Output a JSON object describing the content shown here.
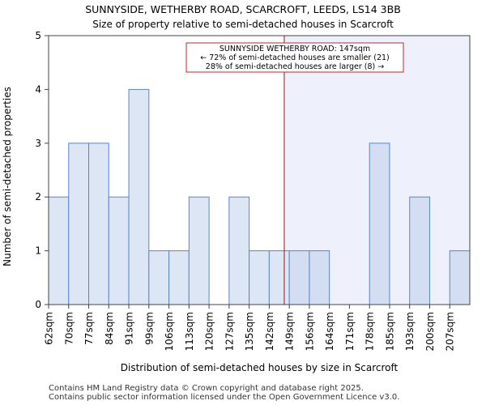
{
  "chart_data": {
    "type": "bar",
    "title": "SUNNYSIDE, WETHERBY ROAD, SCARCROFT, LEEDS, LS14 3BB",
    "subtitle": "Size of property relative to semi-detached houses in Scarcroft",
    "xlabel": "Distribution of semi-detached houses by size in Scarcroft",
    "ylabel": "Number of semi-detached properties",
    "categories": [
      "62sqm",
      "70sqm",
      "77sqm",
      "84sqm",
      "91sqm",
      "99sqm",
      "106sqm",
      "113sqm",
      "120sqm",
      "127sqm",
      "135sqm",
      "142sqm",
      "149sqm",
      "156sqm",
      "164sqm",
      "171sqm",
      "178sqm",
      "185sqm",
      "193sqm",
      "200sqm",
      "207sqm"
    ],
    "values": [
      2,
      3,
      3,
      2,
      4,
      1,
      1,
      2,
      0,
      2,
      1,
      1,
      1,
      1,
      0,
      0,
      3,
      0,
      2,
      0,
      1
    ],
    "ylim": [
      0,
      5
    ],
    "yticks": [
      0,
      1,
      2,
      3,
      4,
      5
    ],
    "grid": false,
    "marker": {
      "value": 147,
      "category_index": 11,
      "offset": 0.75,
      "color": "#8b1a1a",
      "label_lines": [
        "SUNNYSIDE WETHERBY ROAD: 147sqm",
        "← 72% of semi-detached houses are smaller (21)",
        "28% of semi-detached houses are larger (8) →"
      ]
    },
    "colors": {
      "bar_fill": "#dce6f4",
      "bar_fill_highlight": "#d3def2",
      "bar_stroke": "#5a86c8",
      "shade": "#eef1fb",
      "annotation_border": "#c0272d"
    }
  },
  "footer": {
    "line1": "Contains HM Land Registry data © Crown copyright and database right 2025.",
    "line2": "Contains public sector information licensed under the Open Government Licence v3.0."
  }
}
